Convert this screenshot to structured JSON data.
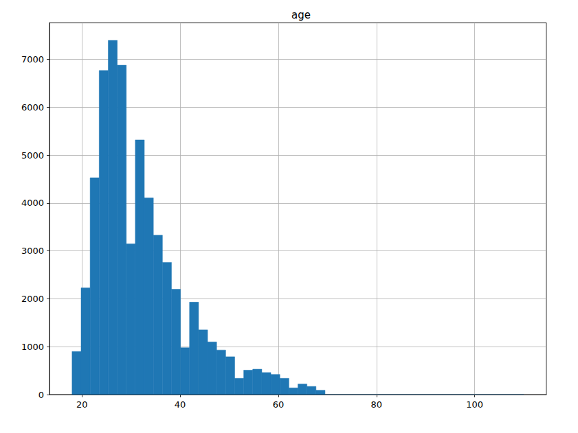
{
  "chart_data": {
    "type": "histogram",
    "title": "age",
    "bins": [
      18,
      19.84,
      21.68,
      23.52,
      25.36,
      27.2,
      29.04,
      30.88,
      32.72,
      34.56,
      36.4,
      38.24,
      40.08,
      41.92,
      43.76,
      45.6,
      47.44,
      49.28,
      51.12,
      52.96,
      54.8,
      56.64,
      58.48,
      60.32,
      62.16,
      64,
      65.84,
      67.68,
      69.52,
      71.36,
      73.2,
      75.04,
      76.88,
      78.72,
      80.56,
      82.4,
      84.24,
      86.08,
      87.92,
      89.76,
      91.6,
      93.44,
      95.28,
      97.12,
      98.96,
      100.8,
      102.64,
      104.48,
      106.32,
      108.16,
      110
    ],
    "values": [
      900,
      2230,
      4530,
      6770,
      7400,
      6880,
      3150,
      5320,
      4110,
      3330,
      2760,
      2200,
      980,
      1930,
      1350,
      1100,
      930,
      790,
      340,
      510,
      530,
      460,
      420,
      340,
      140,
      220,
      170,
      90,
      0,
      0,
      0,
      0,
      0,
      0,
      0,
      0,
      0,
      0,
      0,
      0,
      0,
      0,
      0,
      0,
      0,
      0,
      0,
      0,
      0,
      0
    ],
    "color": "#1f77b4",
    "xlim": [
      13.4,
      114.6
    ],
    "xticks": [
      20,
      40,
      60,
      80,
      100
    ],
    "ylim": [
      0,
      7770
    ],
    "yticks": [
      0,
      1000,
      2000,
      3000,
      4000,
      5000,
      6000,
      7000
    ],
    "grid": true
  }
}
